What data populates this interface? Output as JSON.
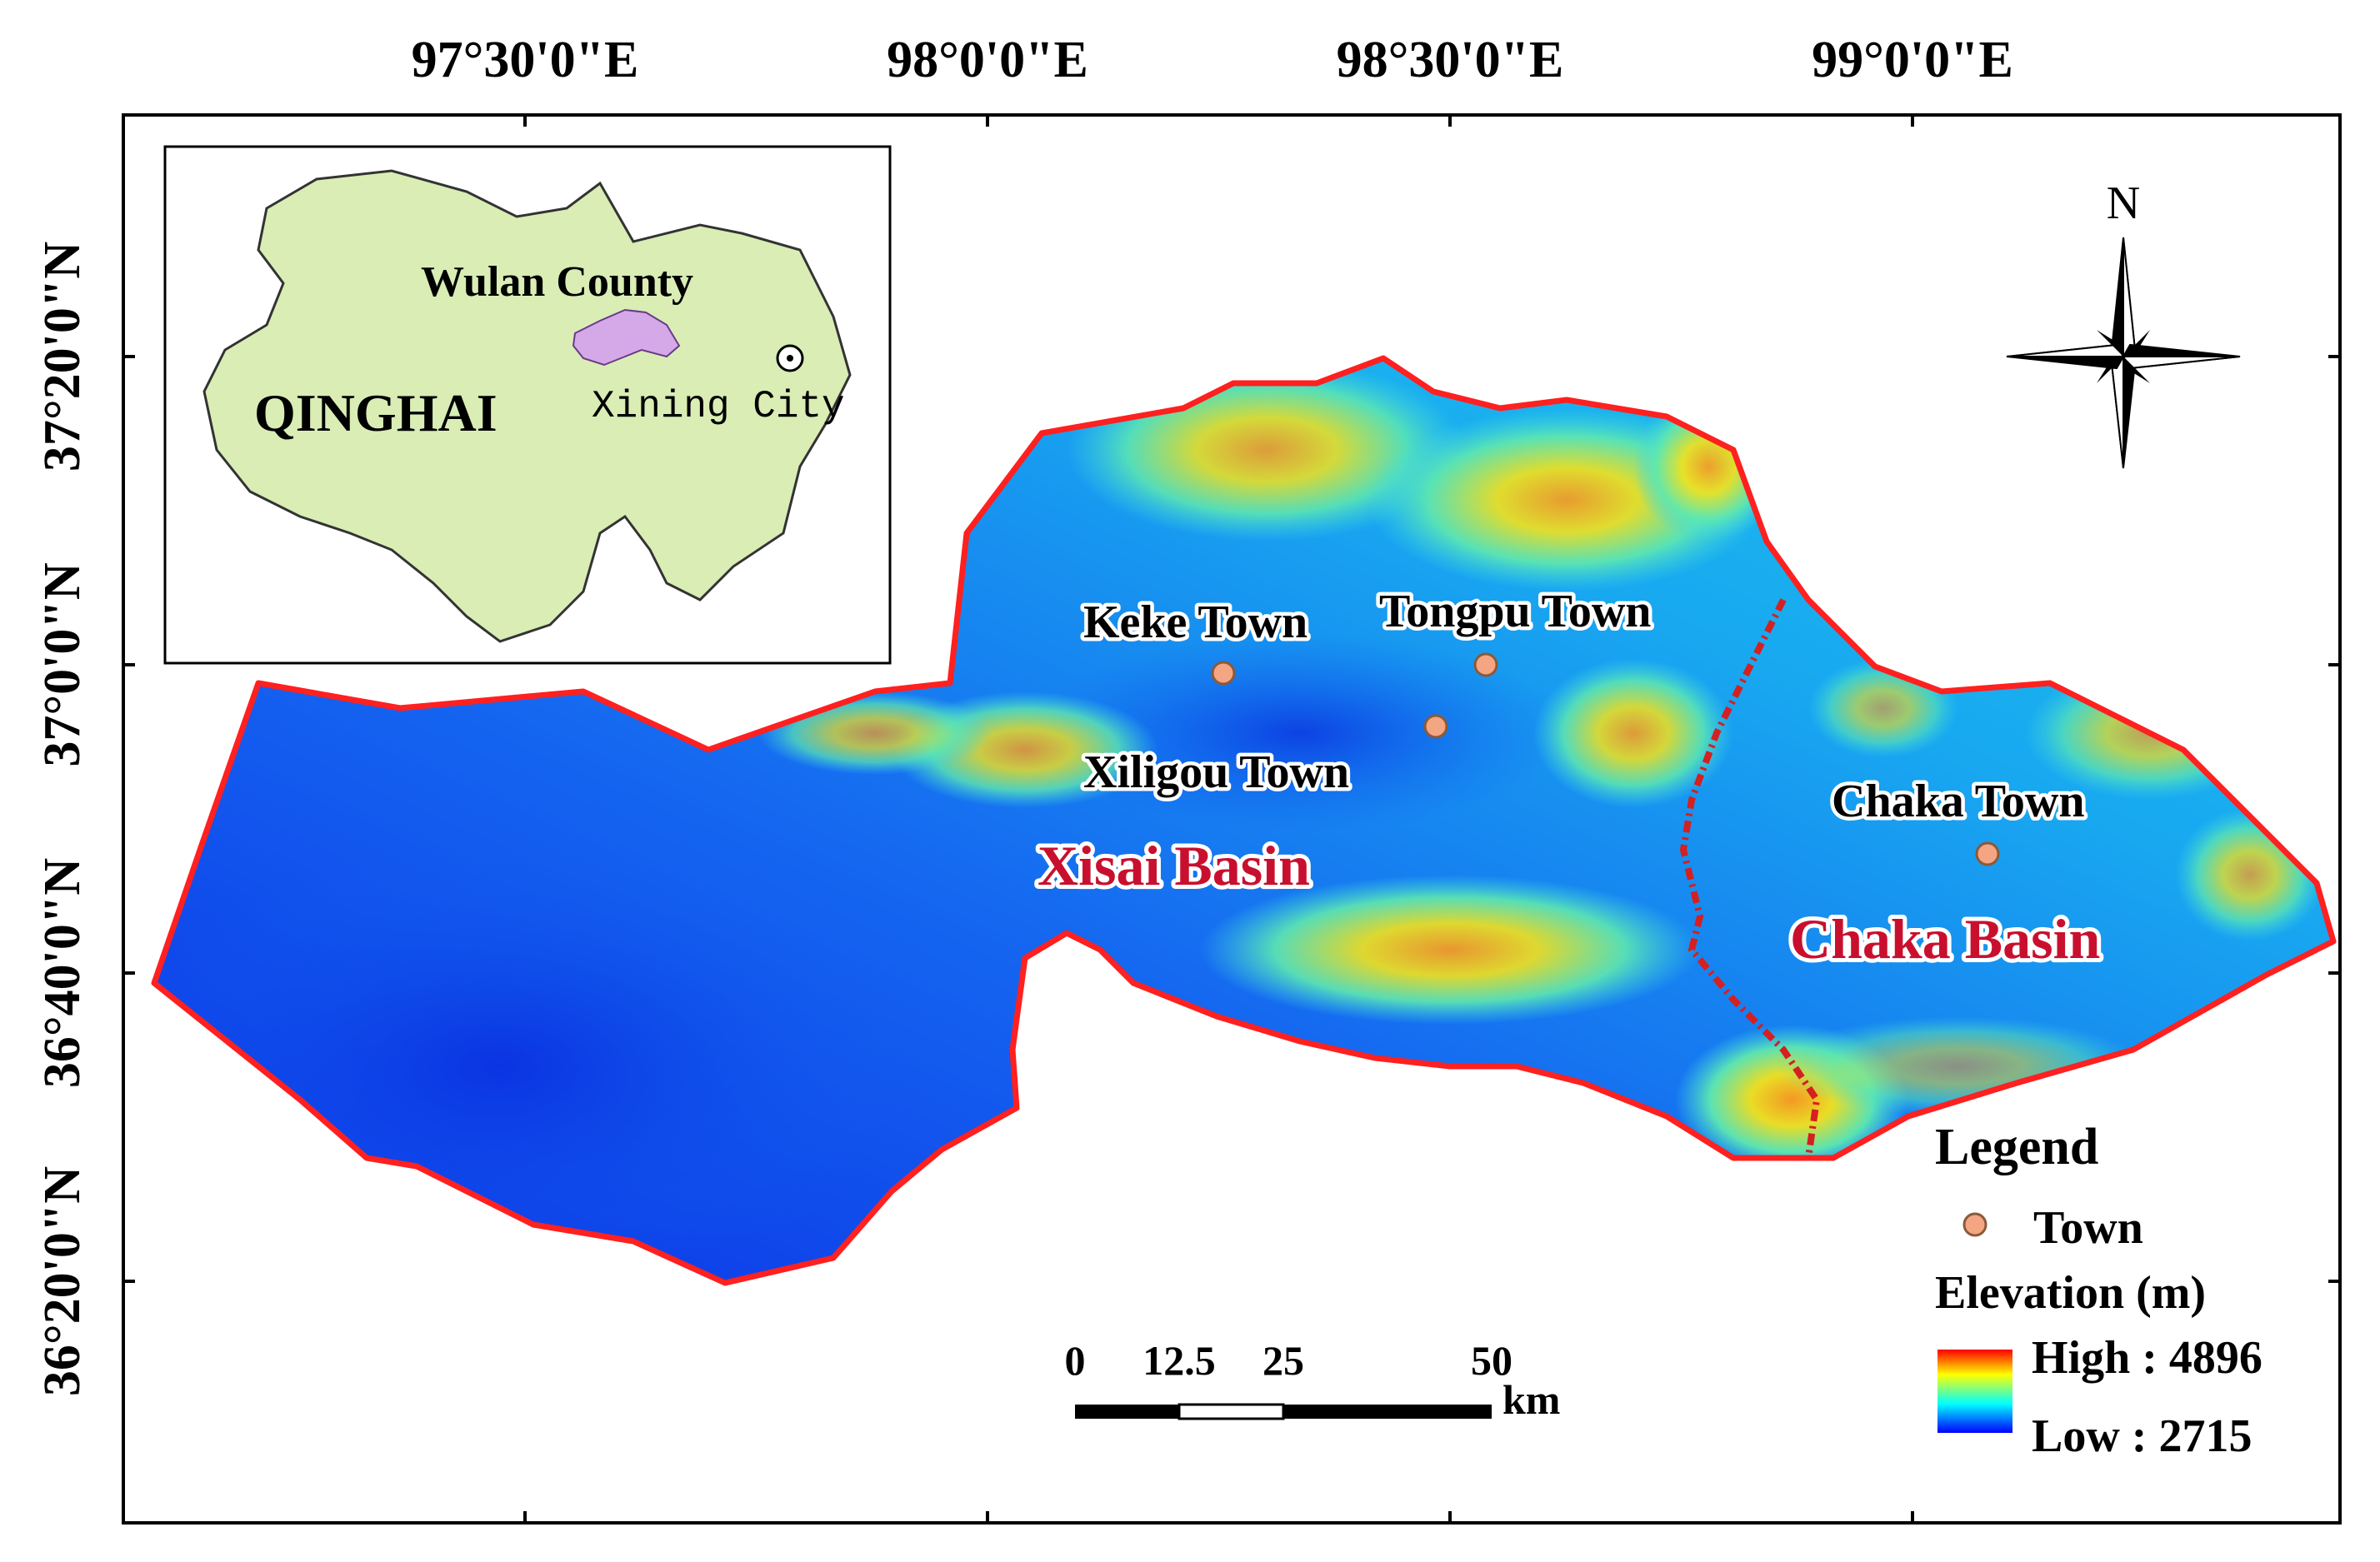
{
  "axes": {
    "top_ticks": [
      "97°30'0\"E",
      "98°0'0\"E",
      "98°30'0\"E",
      "99°0'0\"E"
    ],
    "left_ticks": [
      "37°20'0\"N",
      "37°0'0\"N",
      "36°40'0\"N",
      "36°20'0\"N"
    ]
  },
  "inset": {
    "province_label": "QINGHAI",
    "county_label": "Wulan County",
    "city_label": "Xining City"
  },
  "towns": [
    "Keke Town",
    "Tongpu Town",
    "Xiligou Town",
    "Chaka Town"
  ],
  "basins": [
    "Xisai Basin",
    "Chaka Basin"
  ],
  "north_label": "N",
  "scale_bar": {
    "ticks": [
      "0",
      "12.5",
      "25",
      "50"
    ],
    "unit": "km"
  },
  "legend": {
    "title": "Legend",
    "town_label": "Town",
    "elevation_title": "Elevation (m)",
    "high_label": "High : 4896",
    "low_label": "Low : 2715",
    "town_color": "#f4a582",
    "boundary_color": "#ff2020",
    "divide_color": "#d42020",
    "ramp_colors": [
      "#ff0000",
      "#ffff00",
      "#00ffff",
      "#0000ff"
    ]
  }
}
